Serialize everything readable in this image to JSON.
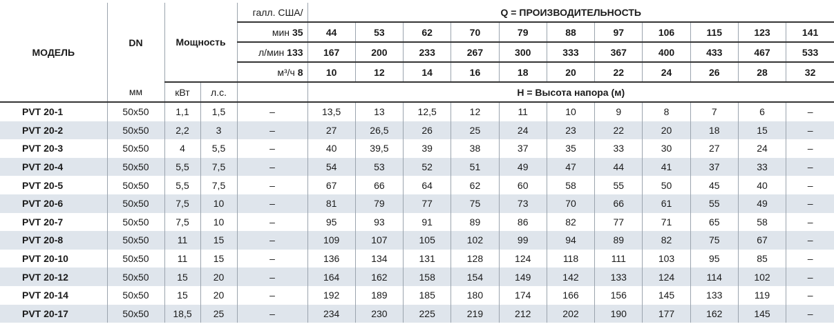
{
  "table": {
    "header": {
      "model": "МОДЕЛЬ",
      "dn": "DN",
      "power": "Мощность",
      "dn_unit": "мм",
      "kw": "кВт",
      "hp": "л.с.",
      "q_title": "Q = ПРОИЗВОДИТЕЛЬНОСТЬ",
      "gpm_label_top": "галл. США/",
      "gpm_label": "мин",
      "gpm_first": "35",
      "gpm": [
        "44",
        "53",
        "62",
        "70",
        "79",
        "88",
        "97",
        "106",
        "115",
        "123",
        "141"
      ],
      "lpm_label": "л/мин",
      "lpm_first": "133",
      "lpm": [
        "167",
        "200",
        "233",
        "267",
        "300",
        "333",
        "367",
        "400",
        "433",
        "467",
        "533"
      ],
      "m3h_label": "м³/ч",
      "m3h_first": "8",
      "m3h": [
        "10",
        "12",
        "14",
        "16",
        "18",
        "20",
        "22",
        "24",
        "26",
        "28",
        "32"
      ],
      "h_title": "H = Высота напора (м)"
    },
    "rows": [
      [
        "PVT 20-1",
        "50x50",
        "1,1",
        "1,5",
        "–",
        "13,5",
        "13",
        "12,5",
        "12",
        "11",
        "10",
        "9",
        "8",
        "7",
        "6",
        "–"
      ],
      [
        "PVT 20-2",
        "50x50",
        "2,2",
        "3",
        "–",
        "27",
        "26,5",
        "26",
        "25",
        "24",
        "23",
        "22",
        "20",
        "18",
        "15",
        "–"
      ],
      [
        "PVT 20-3",
        "50x50",
        "4",
        "5,5",
        "–",
        "40",
        "39,5",
        "39",
        "38",
        "37",
        "35",
        "33",
        "30",
        "27",
        "24",
        "–"
      ],
      [
        "PVT 20-4",
        "50x50",
        "5,5",
        "7,5",
        "–",
        "54",
        "53",
        "52",
        "51",
        "49",
        "47",
        "44",
        "41",
        "37",
        "33",
        "–"
      ],
      [
        "PVT 20-5",
        "50x50",
        "5,5",
        "7,5",
        "–",
        "67",
        "66",
        "64",
        "62",
        "60",
        "58",
        "55",
        "50",
        "45",
        "40",
        "–"
      ],
      [
        "PVT 20-6",
        "50x50",
        "7,5",
        "10",
        "–",
        "81",
        "79",
        "77",
        "75",
        "73",
        "70",
        "66",
        "61",
        "55",
        "49",
        "–"
      ],
      [
        "PVT 20-7",
        "50x50",
        "7,5",
        "10",
        "–",
        "95",
        "93",
        "91",
        "89",
        "86",
        "82",
        "77",
        "71",
        "65",
        "58",
        "–"
      ],
      [
        "PVT 20-8",
        "50x50",
        "11",
        "15",
        "–",
        "109",
        "107",
        "105",
        "102",
        "99",
        "94",
        "89",
        "82",
        "75",
        "67",
        "–"
      ],
      [
        "PVT 20-10",
        "50x50",
        "11",
        "15",
        "–",
        "136",
        "134",
        "131",
        "128",
        "124",
        "118",
        "111",
        "103",
        "95",
        "85",
        "–"
      ],
      [
        "PVT 20-12",
        "50x50",
        "15",
        "20",
        "–",
        "164",
        "162",
        "158",
        "154",
        "149",
        "142",
        "133",
        "124",
        "114",
        "102",
        "–"
      ],
      [
        "PVT 20-14",
        "50x50",
        "15",
        "20",
        "–",
        "192",
        "189",
        "185",
        "180",
        "174",
        "166",
        "156",
        "145",
        "133",
        "119",
        "–"
      ],
      [
        "PVT 20-17",
        "50x50",
        "18,5",
        "25",
        "–",
        "234",
        "230",
        "225",
        "219",
        "212",
        "202",
        "190",
        "177",
        "162",
        "145",
        "–"
      ]
    ]
  }
}
